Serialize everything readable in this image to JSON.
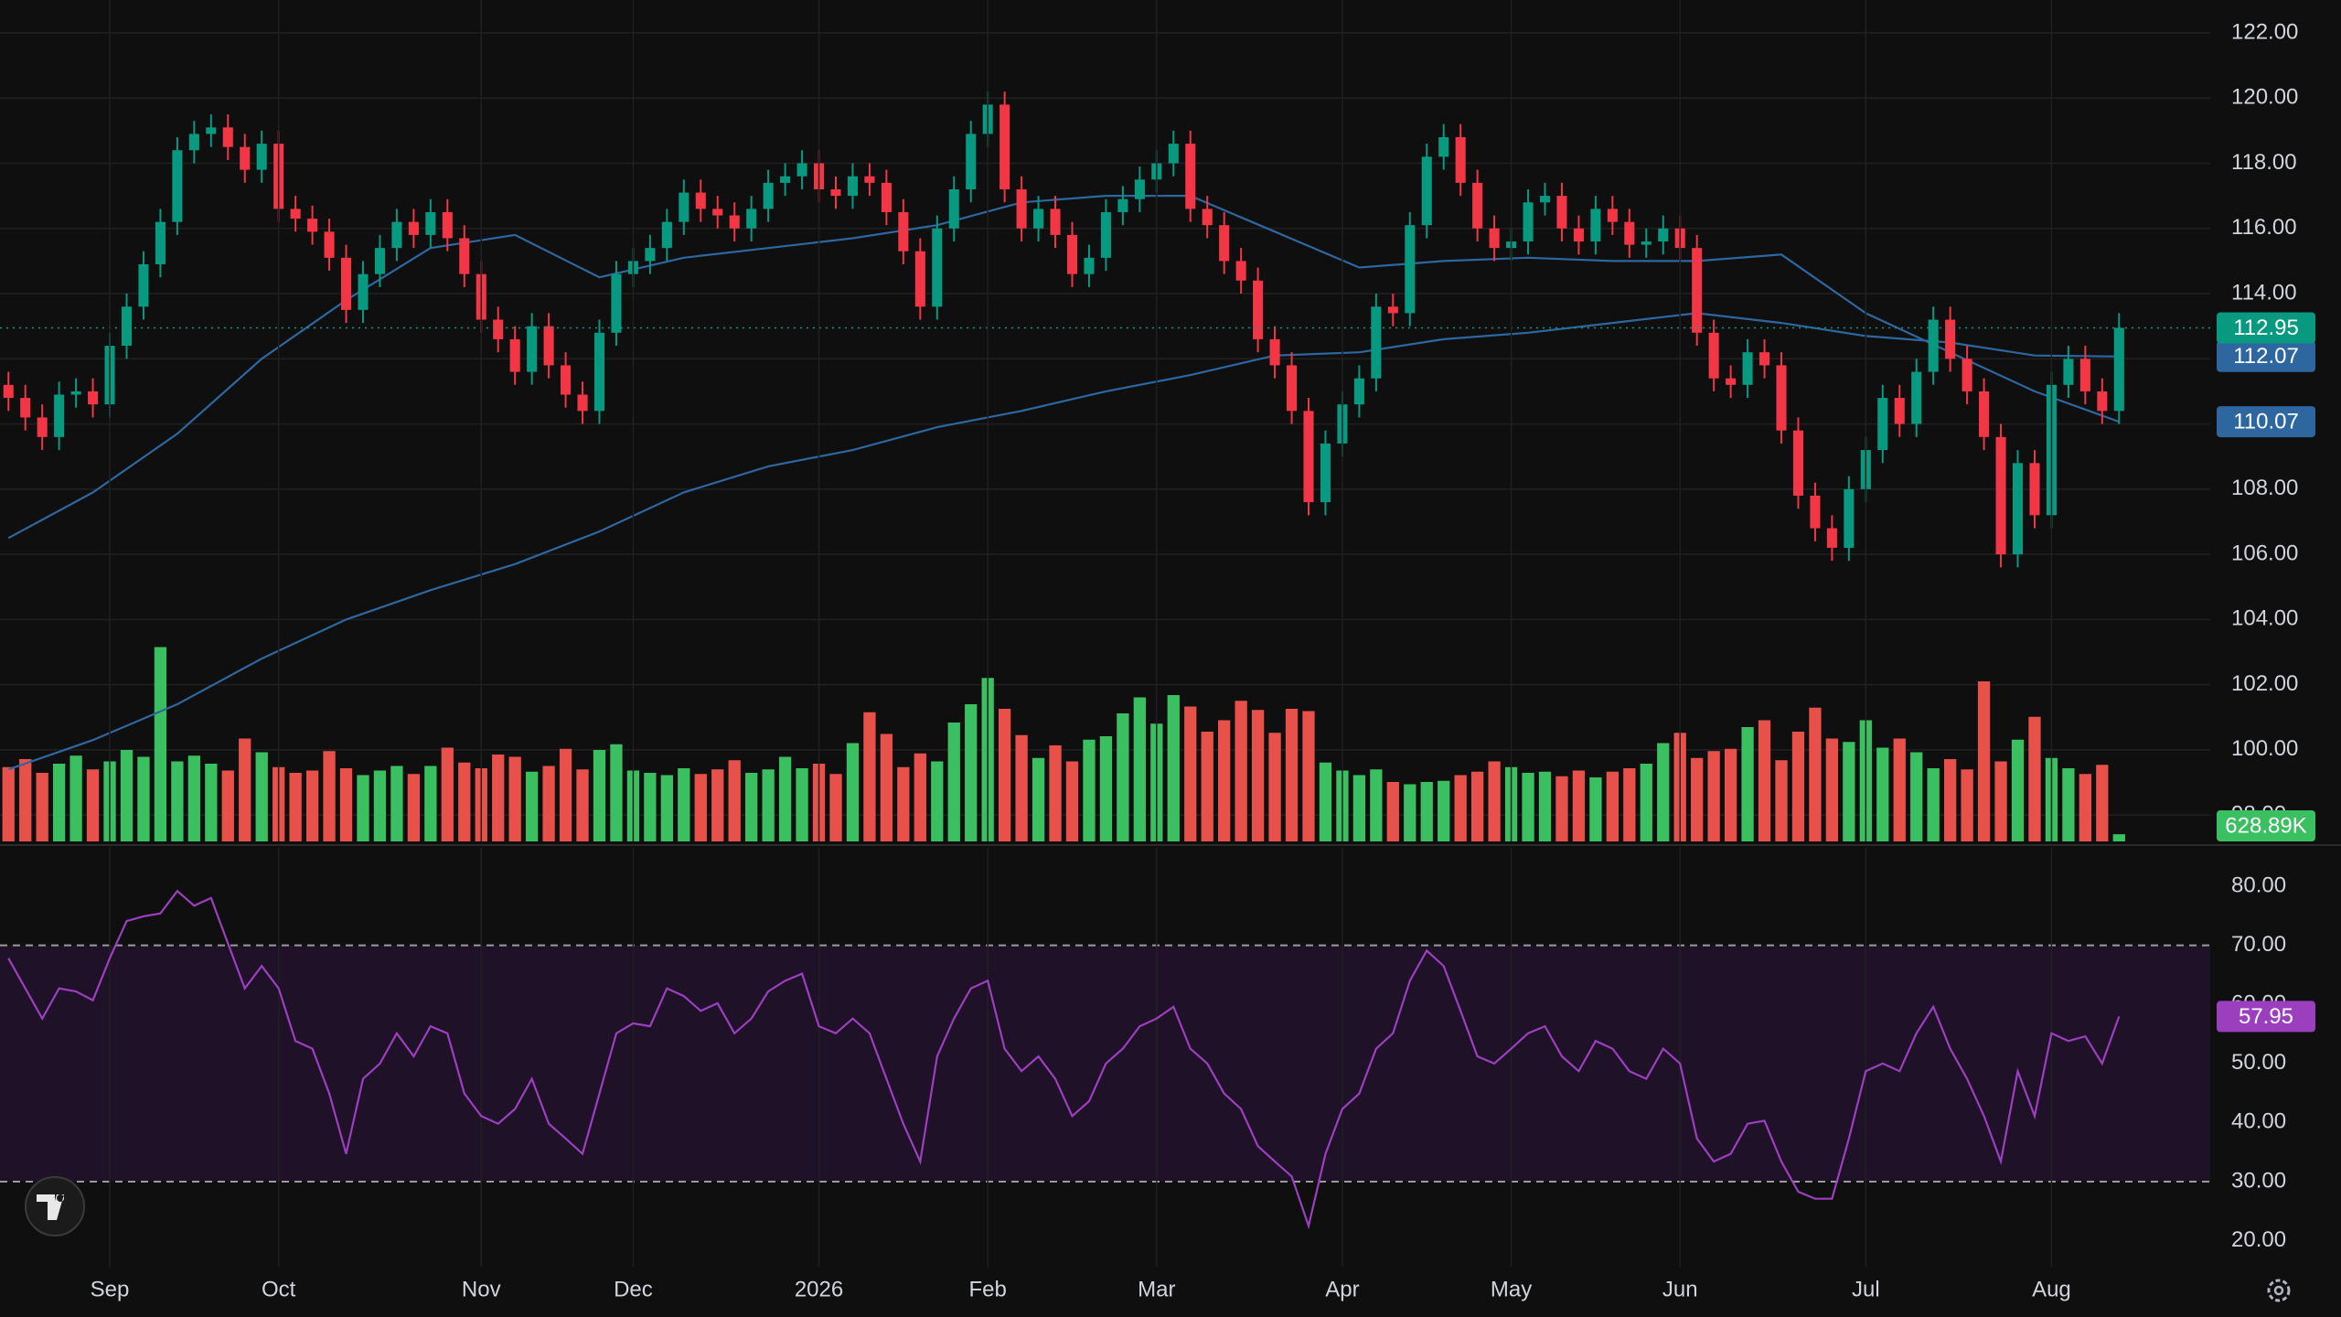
{
  "chart_data": [
    {
      "type": "candlestick",
      "xlim": [
        -0.5,
        130.4
      ],
      "ylim": [
        97.19,
        123.01
      ],
      "yticks": [
        {
          "value": 98,
          "label": "98.00"
        },
        {
          "value": 100,
          "label": "100.00"
        },
        {
          "value": 102,
          "label": "102.00"
        },
        {
          "value": 104,
          "label": "104.00"
        },
        {
          "value": 106,
          "label": "106.00"
        },
        {
          "value": 108,
          "label": "108.00"
        },
        {
          "value": 110,
          "label": "110.00"
        },
        {
          "value": 112,
          "label": "112.00"
        },
        {
          "value": 114,
          "label": "114.00"
        },
        {
          "value": 116,
          "label": "116.00"
        },
        {
          "value": 118,
          "label": "118.00"
        },
        {
          "value": 120,
          "label": "120.00"
        },
        {
          "value": 122,
          "label": "122.00"
        }
      ],
      "grid": true,
      "up_color": "#089981",
      "down_color": "#f23645",
      "open": [
        111.2,
        110.8,
        110.2,
        109.6,
        110.9,
        111.0,
        110.6,
        112.4,
        113.6,
        114.9,
        116.2,
        118.4,
        118.9,
        119.1,
        118.5,
        117.8,
        118.6,
        116.6,
        116.3,
        115.9,
        115.1,
        113.5,
        114.6,
        115.4,
        116.2,
        115.8,
        116.5,
        115.7,
        114.6,
        113.2,
        112.6,
        111.6,
        113.0,
        111.8,
        110.9,
        110.4,
        112.8,
        114.6,
        115.0,
        115.4,
        116.2,
        117.1,
        116.6,
        116.4,
        116.0,
        116.6,
        117.4,
        117.6,
        118.0,
        117.2,
        117.0,
        117.6,
        117.4,
        116.5,
        115.3,
        113.6,
        116.0,
        117.2,
        118.9,
        119.8,
        117.2,
        116.0,
        116.6,
        115.8,
        114.6,
        115.1,
        116.5,
        116.9,
        117.5,
        118.0,
        118.6,
        116.6,
        116.1,
        115.0,
        114.4,
        112.6,
        111.8,
        110.4,
        107.6,
        109.4,
        110.6,
        111.4,
        113.6,
        113.4,
        116.1,
        118.2,
        118.8,
        117.4,
        116.0,
        115.4,
        115.6,
        116.8,
        117.0,
        116.0,
        115.6,
        116.6,
        116.2,
        115.5,
        115.6,
        116.0,
        115.4,
        112.8,
        111.4,
        111.2,
        112.2,
        111.8,
        109.8,
        107.8,
        106.8,
        106.2,
        108.0,
        109.2,
        110.8,
        110.0,
        111.6,
        113.2,
        112.0,
        111.0,
        109.6,
        106.0,
        108.8,
        107.2,
        111.2,
        112.0,
        111.0,
        110.4
      ],
      "high": [
        111.6,
        111.2,
        110.6,
        111.3,
        111.4,
        111.4,
        112.8,
        114.0,
        115.3,
        116.6,
        118.8,
        119.3,
        119.5,
        119.5,
        118.9,
        119.0,
        119.0,
        117.0,
        116.7,
        116.3,
        115.5,
        115.0,
        115.8,
        116.6,
        116.6,
        116.9,
        116.9,
        116.1,
        115.0,
        113.6,
        113.0,
        113.4,
        113.4,
        112.2,
        111.3,
        113.2,
        115.0,
        115.4,
        115.8,
        116.6,
        117.5,
        117.5,
        117.0,
        116.8,
        117.0,
        117.8,
        118.0,
        118.4,
        118.4,
        117.6,
        118.0,
        118.0,
        117.8,
        116.9,
        115.7,
        116.4,
        117.6,
        119.3,
        120.2,
        120.2,
        117.6,
        117.0,
        117.0,
        116.2,
        115.5,
        116.9,
        117.3,
        117.9,
        118.4,
        119.0,
        119.0,
        117.0,
        116.5,
        115.4,
        114.8,
        113.0,
        112.2,
        110.8,
        109.8,
        111.0,
        111.8,
        114.0,
        114.0,
        116.5,
        118.6,
        119.2,
        119.2,
        117.8,
        116.4,
        116.0,
        117.2,
        117.4,
        117.4,
        116.4,
        117.0,
        117.0,
        116.6,
        116.0,
        116.4,
        116.4,
        115.8,
        113.2,
        111.8,
        112.6,
        112.6,
        112.2,
        110.2,
        108.2,
        107.2,
        108.4,
        109.6,
        111.2,
        111.2,
        112.0,
        113.6,
        113.6,
        112.4,
        111.4,
        110.0,
        109.2,
        109.2,
        111.6,
        112.4,
        112.4,
        111.4,
        113.4
      ],
      "low": [
        110.4,
        109.8,
        109.2,
        109.2,
        110.5,
        110.2,
        110.2,
        112.0,
        113.2,
        114.5,
        115.8,
        118.0,
        118.5,
        118.1,
        117.4,
        117.4,
        116.2,
        115.9,
        115.5,
        114.7,
        113.1,
        113.1,
        114.2,
        115.0,
        115.4,
        115.4,
        115.3,
        114.2,
        112.8,
        112.2,
        111.2,
        111.2,
        111.4,
        110.5,
        110.0,
        110.0,
        112.4,
        114.2,
        114.6,
        115.0,
        115.8,
        116.2,
        116.0,
        115.6,
        115.6,
        116.2,
        117.0,
        117.2,
        116.8,
        116.6,
        116.6,
        117.0,
        116.1,
        114.9,
        113.2,
        113.2,
        115.6,
        116.8,
        118.5,
        116.8,
        115.6,
        115.6,
        115.4,
        114.2,
        114.2,
        114.7,
        116.1,
        116.5,
        117.1,
        117.6,
        116.2,
        115.7,
        114.6,
        114.0,
        112.2,
        111.4,
        110.0,
        107.2,
        107.2,
        109.0,
        110.2,
        111.0,
        113.0,
        113.0,
        115.7,
        117.8,
        117.0,
        115.6,
        115.0,
        115.0,
        115.2,
        116.4,
        115.6,
        115.2,
        115.2,
        115.8,
        115.1,
        115.1,
        115.2,
        115.0,
        112.4,
        111.0,
        110.8,
        110.8,
        111.4,
        109.4,
        107.4,
        106.4,
        105.8,
        105.8,
        107.6,
        108.8,
        109.6,
        109.6,
        111.2,
        111.6,
        110.6,
        109.2,
        105.6,
        105.6,
        106.8,
        106.8,
        110.8,
        110.6,
        110.0,
        110.0
      ],
      "close": [
        110.8,
        110.2,
        109.6,
        110.9,
        111.0,
        110.6,
        112.4,
        113.6,
        114.9,
        116.2,
        118.4,
        118.9,
        119.1,
        118.5,
        117.8,
        118.6,
        116.6,
        116.3,
        115.9,
        115.1,
        113.5,
        114.6,
        115.4,
        116.2,
        115.8,
        116.5,
        115.7,
        114.6,
        113.2,
        112.6,
        111.6,
        113.0,
        111.8,
        110.9,
        110.4,
        112.8,
        114.6,
        115.0,
        115.4,
        116.2,
        117.1,
        116.6,
        116.4,
        116.0,
        116.6,
        117.4,
        117.6,
        118.0,
        117.2,
        117.0,
        117.6,
        117.4,
        116.5,
        115.3,
        113.6,
        116.0,
        117.2,
        118.9,
        119.8,
        117.2,
        116.0,
        116.6,
        115.8,
        114.6,
        115.1,
        116.5,
        116.9,
        117.5,
        118.0,
        118.6,
        116.6,
        116.1,
        115.0,
        114.4,
        112.6,
        111.8,
        110.4,
        107.6,
        109.4,
        110.6,
        111.4,
        113.6,
        113.4,
        116.1,
        118.2,
        118.8,
        117.4,
        116.0,
        115.4,
        115.6,
        116.8,
        117.0,
        116.0,
        115.6,
        116.6,
        116.2,
        115.5,
        115.6,
        116.0,
        115.4,
        112.8,
        111.4,
        111.2,
        112.2,
        111.8,
        109.8,
        107.8,
        106.8,
        106.2,
        108.0,
        109.2,
        110.8,
        110.0,
        111.6,
        113.2,
        112.0,
        111.0,
        109.6,
        106.0,
        108.8,
        107.2,
        111.2,
        112.0,
        111.0,
        110.4,
        112.95
      ],
      "volume": {
        "vlim": [
          0,
          20000000
        ],
        "up_color": "#3ac060",
        "down_color": "#e8514a",
        "values": [
          6500000,
          7200000,
          6000000,
          6800000,
          7500000,
          6300000,
          7000000,
          8000000,
          7400000,
          17000000,
          7000000,
          7500000,
          6800000,
          6200000,
          9000000,
          7800000,
          6500000,
          6000000,
          6200000,
          7900000,
          6400000,
          5800000,
          6200000,
          6600000,
          5900000,
          6600000,
          8200000,
          6900000,
          6400000,
          7600000,
          7400000,
          6100000,
          6600000,
          8100000,
          6300000,
          8000000,
          8500000,
          6200000,
          6000000,
          5800000,
          6400000,
          5900000,
          6300000,
          7100000,
          6000000,
          6300000,
          7400000,
          6400000,
          6800000,
          5900000,
          8600000,
          11300000,
          9400000,
          6500000,
          7700000,
          7000000,
          10400000,
          12000000,
          14300000,
          11600000,
          9300000,
          7300000,
          8400000,
          7000000,
          8900000,
          9200000,
          11200000,
          12600000,
          10300000,
          12800000,
          11800000,
          9600000,
          10600000,
          12300000,
          11500000,
          9500000,
          11600000,
          11400000,
          6900000,
          6200000,
          5800000,
          6300000,
          5200000,
          5000000,
          5200000,
          5300000,
          5800000,
          6100000,
          7000000,
          6500000,
          6000000,
          6100000,
          5700000,
          6200000,
          5600000,
          6100000,
          6400000,
          6800000,
          8600000,
          9500000,
          7300000,
          7900000,
          8100000,
          10000000,
          10600000,
          7100000,
          9600000,
          11700000,
          9000000,
          8700000,
          10600000,
          8200000,
          9000000,
          7800000,
          6400000,
          7200000,
          6300000,
          14000000,
          7000000,
          8900000,
          10900000,
          7300000,
          6400000,
          5900000,
          6700000,
          628890
        ],
        "value_labels": [
          null,
          null,
          null,
          null,
          null,
          null,
          null,
          null,
          null,
          null,
          null,
          null,
          null,
          null,
          null,
          null,
          null,
          null,
          null,
          null,
          null,
          null,
          null,
          null,
          null,
          null,
          null,
          null,
          null,
          null,
          null,
          null,
          null,
          null,
          null,
          null,
          null,
          null,
          null,
          null,
          null,
          null,
          null,
          null,
          null,
          null,
          null,
          null,
          null,
          null,
          null,
          null,
          null,
          null,
          null,
          null,
          null,
          null,
          null,
          null,
          null,
          null,
          null,
          null,
          null,
          null,
          null,
          null,
          null,
          null,
          null,
          null,
          null,
          null,
          null,
          null,
          null,
          null,
          null,
          null,
          null,
          null,
          null,
          null,
          null,
          null,
          null,
          null,
          null,
          null,
          null,
          null,
          null,
          null,
          null,
          null,
          null,
          null,
          null,
          null,
          null,
          null,
          null,
          null,
          null,
          null,
          null,
          null,
          null,
          null,
          null,
          null,
          null,
          null,
          null,
          null,
          null,
          null,
          null,
          null,
          null,
          null,
          null,
          null,
          null,
          "628.89K"
        ]
      },
      "series": [
        {
          "color": "#2e67a0",
          "x": [
            0,
            5,
            10,
            15,
            20,
            25,
            30,
            35,
            40,
            45,
            50,
            55,
            60,
            65,
            70,
            75,
            80,
            85,
            90,
            95,
            100,
            105,
            110,
            115,
            120,
            125
          ],
          "values": [
            106.5,
            107.9,
            109.7,
            112.0,
            113.8,
            115.4,
            115.8,
            114.5,
            115.1,
            115.4,
            115.7,
            116.1,
            116.8,
            117.0,
            117.0,
            115.9,
            114.8,
            115.0,
            115.1,
            115.0,
            115.0,
            115.2,
            113.4,
            112.2,
            111.0,
            110.07
          ]
        },
        {
          "color": "#2e67a0",
          "x": [
            0,
            5,
            10,
            15,
            20,
            25,
            30,
            35,
            40,
            45,
            50,
            55,
            60,
            65,
            70,
            75,
            80,
            85,
            90,
            95,
            100,
            105,
            110,
            115,
            120,
            125
          ],
          "values": [
            99.4,
            100.3,
            101.4,
            102.8,
            104.0,
            104.9,
            105.7,
            106.7,
            107.9,
            108.7,
            109.2,
            109.9,
            110.4,
            111.0,
            111.5,
            112.1,
            112.2,
            112.6,
            112.8,
            113.1,
            113.4,
            113.1,
            112.7,
            112.5,
            112.1,
            112.07
          ]
        }
      ]
    },
    {
      "type": "line",
      "xlim": [
        -0.5,
        130.4
      ],
      "ylim": [
        15.6,
        86.5
      ],
      "color": "#9c3fbf",
      "band": [
        30,
        70
      ],
      "band_color": "#1f1228",
      "yticks": [
        {
          "value": 20,
          "label": "20.00"
        },
        {
          "value": 30,
          "label": "30.00"
        },
        {
          "value": 40,
          "label": "40.00"
        },
        {
          "value": 50,
          "label": "50.00"
        },
        {
          "value": 60,
          "label": "60.00"
        },
        {
          "value": 70,
          "label": "70.00"
        },
        {
          "value": 80,
          "label": "80.00"
        }
      ],
      "xticks": [
        {
          "value": 6,
          "label": "Sep"
        },
        {
          "value": 16,
          "label": "Oct"
        },
        {
          "value": 28,
          "label": "Nov"
        },
        {
          "value": 37,
          "label": "Dec"
        },
        {
          "value": 48,
          "label": "2026"
        },
        {
          "value": 58,
          "label": "Feb"
        },
        {
          "value": 68,
          "label": "Mar"
        },
        {
          "value": 79,
          "label": "Apr"
        },
        {
          "value": 89,
          "label": "May"
        },
        {
          "value": 99,
          "label": "Jun"
        },
        {
          "value": 110,
          "label": "Jul"
        },
        {
          "value": 121,
          "label": "Aug"
        }
      ],
      "values": [
        67.8,
        62.7,
        57.6,
        62.7,
        62.2,
        60.7,
        67.8,
        74.1,
        74.9,
        75.4,
        79.2,
        76.7,
        78.0,
        70.3,
        62.7,
        66.5,
        62.7,
        53.8,
        52.5,
        44.9,
        34.7,
        47.4,
        50.0,
        55.1,
        51.2,
        56.3,
        55.1,
        44.9,
        41.1,
        39.8,
        42.3,
        47.4,
        39.8,
        37.3,
        34.7,
        44.9,
        55.1,
        56.8,
        56.3,
        62.7,
        61.4,
        58.9,
        60.2,
        55.1,
        57.6,
        62.2,
        64.0,
        65.2,
        56.3,
        55.1,
        57.6,
        55.1,
        47.4,
        39.8,
        33.4,
        51.2,
        57.6,
        62.7,
        64.0,
        52.5,
        48.7,
        51.2,
        47.4,
        41.1,
        43.6,
        50.0,
        52.5,
        56.3,
        57.6,
        59.6,
        52.5,
        50.0,
        44.9,
        42.3,
        36.0,
        33.4,
        30.9,
        22.5,
        34.7,
        42.3,
        44.9,
        52.5,
        55.1,
        64.0,
        69.1,
        66.5,
        58.9,
        51.2,
        50.0,
        52.5,
        55.1,
        56.3,
        51.2,
        48.7,
        53.8,
        52.5,
        48.7,
        47.4,
        52.5,
        50.0,
        37.3,
        33.4,
        34.7,
        39.8,
        40.3,
        33.4,
        28.3,
        27.1,
        27.1,
        37.3,
        48.7,
        50.0,
        48.7,
        55.1,
        59.6,
        52.5,
        47.4,
        41.1,
        33.4,
        48.7,
        41.1,
        55.1,
        53.8,
        54.6,
        50.0,
        57.95
      ]
    }
  ]
}
